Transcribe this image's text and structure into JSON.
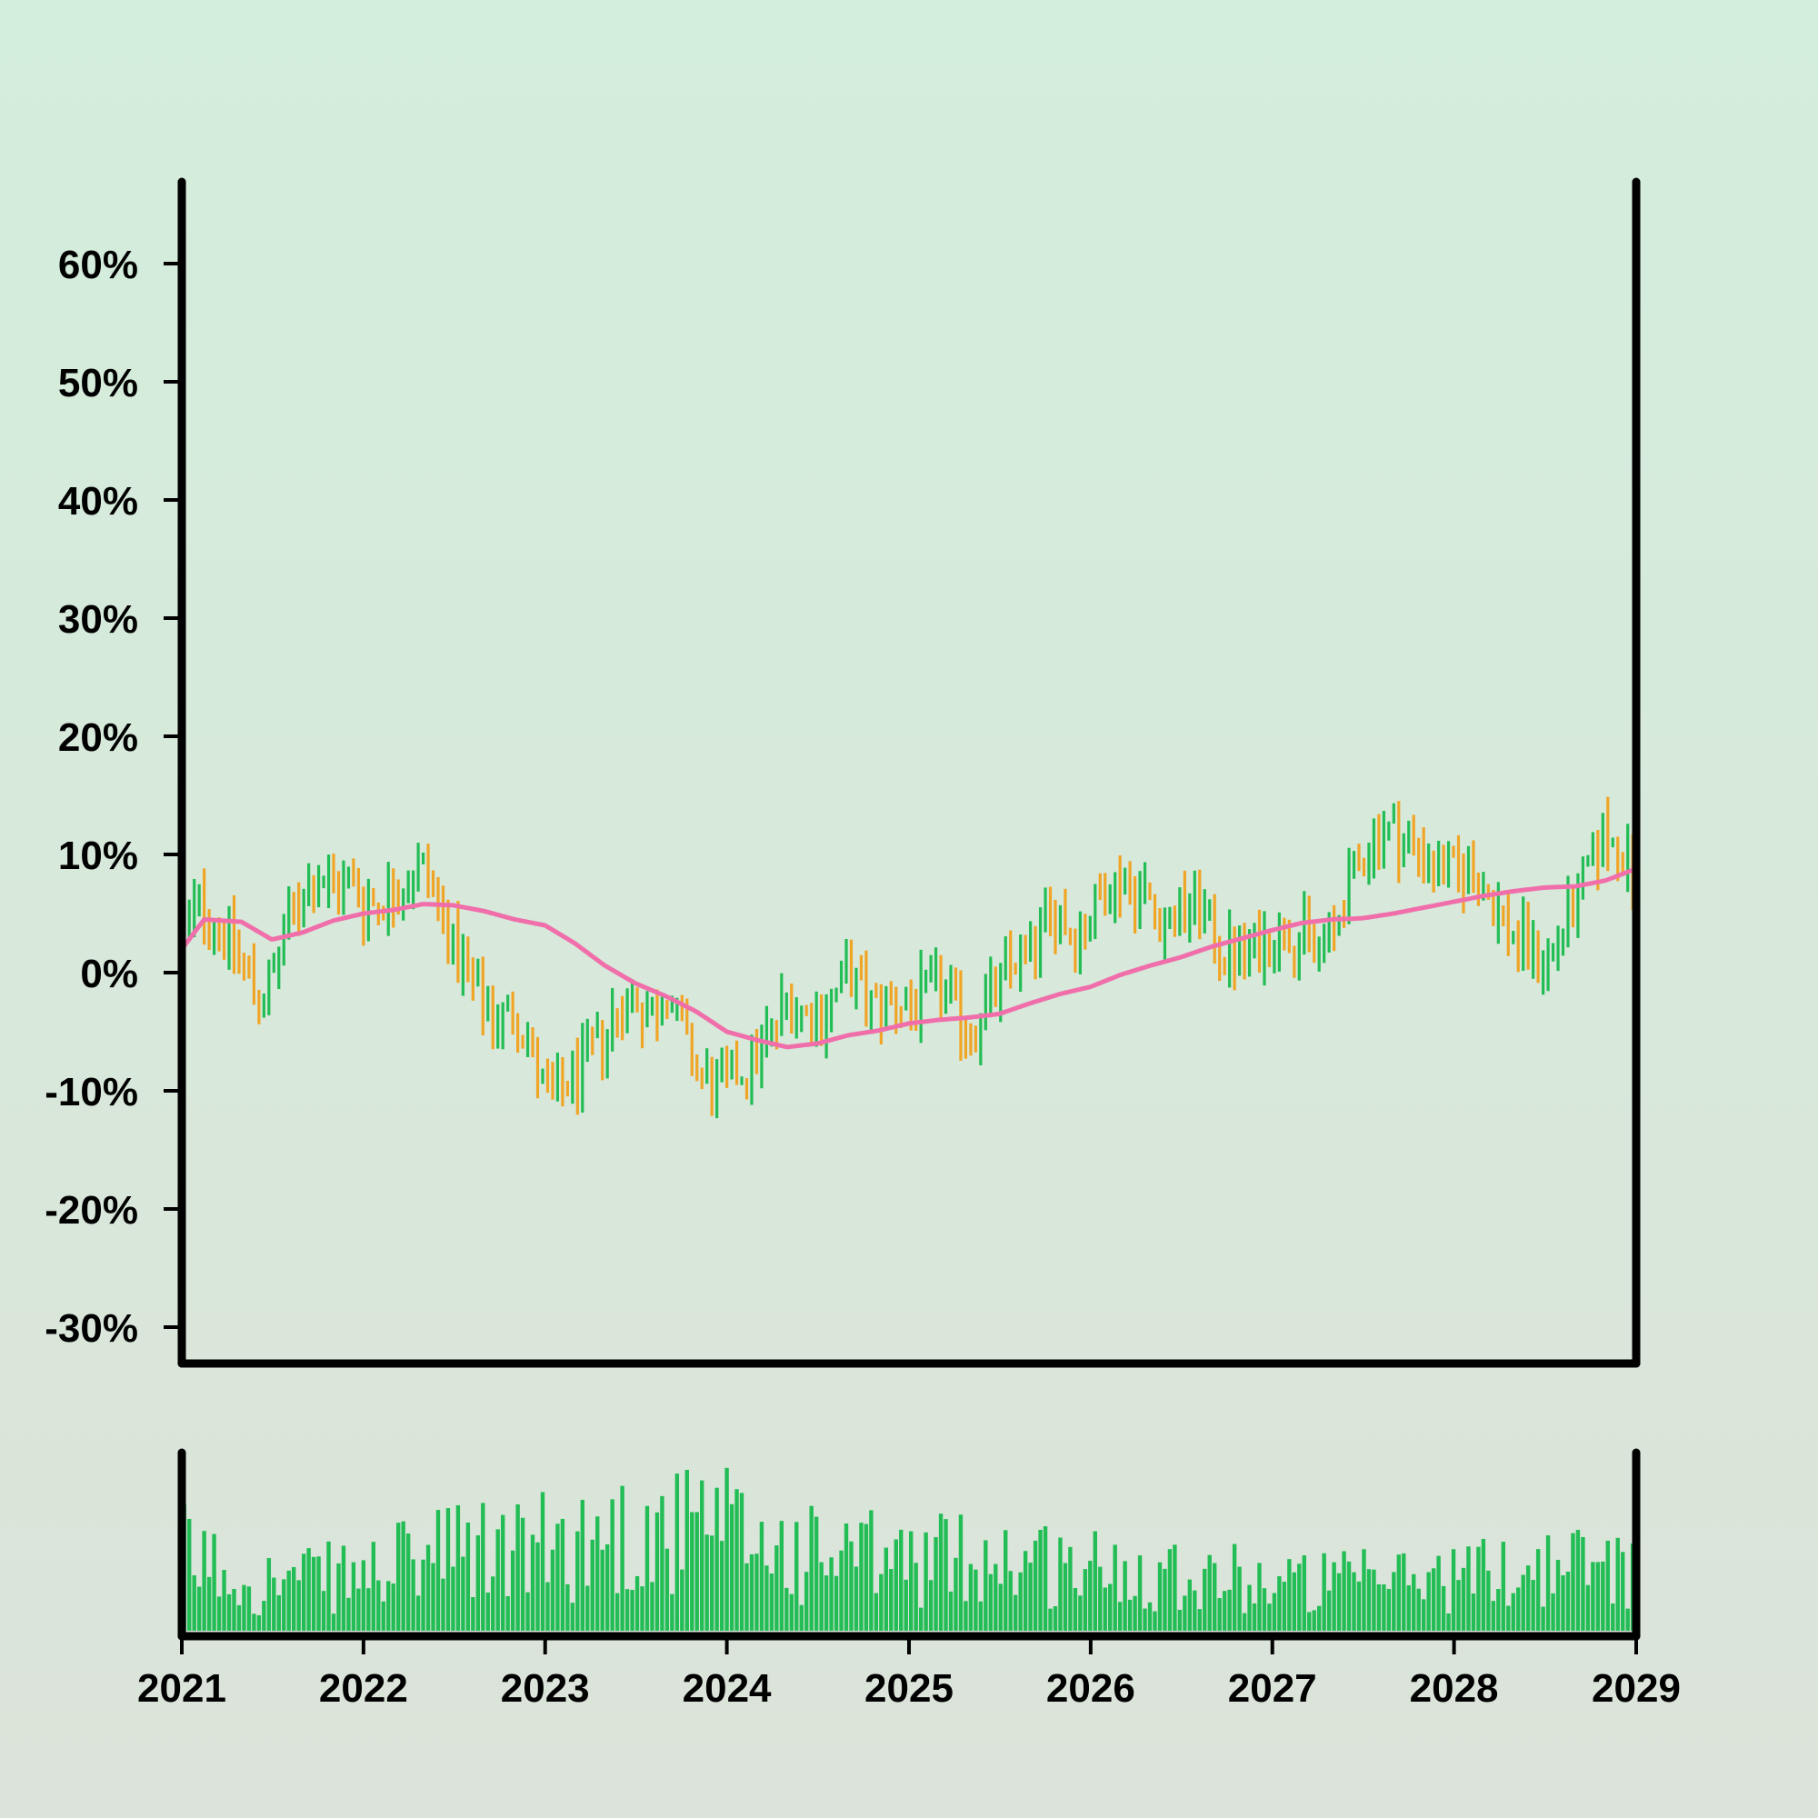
{
  "chart_data": {
    "type": "ohlc",
    "title": "",
    "xlabel": "",
    "ylabel": "",
    "x_range": [
      "2021-01-01",
      "2029-01-01"
    ],
    "y_range": [
      -0.33,
      0.67
    ],
    "y_ticks": [
      -0.3,
      -0.2,
      -0.1,
      0.0,
      0.1,
      0.2,
      0.3,
      0.4,
      0.5,
      0.6
    ],
    "y_tick_labels": [
      "-30%",
      "-20%",
      "-10%",
      "0%",
      "10%",
      "20%",
      "30%",
      "40%",
      "50%",
      "60%"
    ],
    "x_tick_labels": [
      "2021",
      "2022",
      "2023",
      "2024",
      "2025",
      "2026",
      "2027",
      "2028",
      "2029"
    ],
    "grid": false,
    "legend": "none",
    "colors": {
      "background_top": "#d3eedb",
      "background_bottom": "#dce3da",
      "up": "#22bd55",
      "down": "#f0a526",
      "moving_average": "#f06fab",
      "volume": "#22bd55",
      "axis": "#000000"
    },
    "price_path": [
      [
        "2021-01-01",
        0.02
      ],
      [
        "2021-02-01",
        0.06
      ],
      [
        "2021-03-01",
        0.05
      ],
      [
        "2021-04-01",
        0.03
      ],
      [
        "2021-05-01",
        0.01
      ],
      [
        "2021-06-01",
        -0.02
      ],
      [
        "2021-07-01",
        -0.01
      ],
      [
        "2021-08-01",
        0.04
      ],
      [
        "2021-09-01",
        0.07
      ],
      [
        "2021-10-01",
        0.08
      ],
      [
        "2021-11-01",
        0.07
      ],
      [
        "2021-12-01",
        0.08
      ],
      [
        "2022-01-01",
        0.06
      ],
      [
        "2022-02-01",
        0.06
      ],
      [
        "2022-03-01",
        0.07
      ],
      [
        "2022-04-01",
        0.08
      ],
      [
        "2022-05-01",
        0.09
      ],
      [
        "2022-06-01",
        0.06
      ],
      [
        "2022-07-01",
        0.02
      ],
      [
        "2022-08-01",
        -0.01
      ],
      [
        "2022-09-01",
        -0.03
      ],
      [
        "2022-10-01",
        -0.04
      ],
      [
        "2022-11-01",
        -0.03
      ],
      [
        "2022-12-01",
        -0.06
      ],
      [
        "2023-01-01",
        -0.11
      ],
      [
        "2023-02-01",
        -0.1
      ],
      [
        "2023-03-01",
        -0.09
      ],
      [
        "2023-04-01",
        -0.07
      ],
      [
        "2023-05-01",
        -0.05
      ],
      [
        "2023-06-01",
        -0.03
      ],
      [
        "2023-07-01",
        -0.02
      ],
      [
        "2023-08-01",
        -0.04
      ],
      [
        "2023-09-01",
        -0.01
      ],
      [
        "2023-10-01",
        -0.05
      ],
      [
        "2023-11-01",
        -0.08
      ],
      [
        "2023-12-01",
        -0.1
      ],
      [
        "2024-01-01",
        -0.09
      ],
      [
        "2024-02-01",
        -0.08
      ],
      [
        "2024-03-01",
        -0.07
      ],
      [
        "2024-04-01",
        -0.05
      ],
      [
        "2024-05-01",
        -0.02
      ],
      [
        "2024-06-01",
        -0.03
      ],
      [
        "2024-07-01",
        -0.04
      ],
      [
        "2024-08-01",
        -0.02
      ],
      [
        "2024-09-01",
        0.0
      ],
      [
        "2024-10-01",
        -0.02
      ],
      [
        "2024-11-01",
        -0.03
      ],
      [
        "2024-12-01",
        -0.02
      ],
      [
        "2025-01-01",
        -0.03
      ],
      [
        "2025-02-01",
        -0.02
      ],
      [
        "2025-03-01",
        -0.01
      ],
      [
        "2025-04-01",
        -0.03
      ],
      [
        "2025-05-01",
        -0.05
      ],
      [
        "2025-06-01",
        -0.03
      ],
      [
        "2025-07-01",
        -0.01
      ],
      [
        "2025-08-01",
        0.01
      ],
      [
        "2025-09-01",
        0.02
      ],
      [
        "2025-10-01",
        0.04
      ],
      [
        "2025-11-01",
        0.05
      ],
      [
        "2025-12-01",
        0.03
      ],
      [
        "2026-01-01",
        0.05
      ],
      [
        "2026-02-01",
        0.07
      ],
      [
        "2026-03-01",
        0.08
      ],
      [
        "2026-04-01",
        0.07
      ],
      [
        "2026-05-01",
        0.06
      ],
      [
        "2026-06-01",
        0.04
      ],
      [
        "2026-07-01",
        0.05
      ],
      [
        "2026-08-01",
        0.06
      ],
      [
        "2026-09-01",
        0.03
      ],
      [
        "2026-10-01",
        0.02
      ],
      [
        "2026-11-01",
        0.01
      ],
      [
        "2026-12-01",
        0.02
      ],
      [
        "2027-01-01",
        0.03
      ],
      [
        "2027-02-01",
        0.04
      ],
      [
        "2027-03-01",
        0.03
      ],
      [
        "2027-04-01",
        0.02
      ],
      [
        "2027-05-01",
        0.03
      ],
      [
        "2027-06-01",
        0.07
      ],
      [
        "2027-07-01",
        0.1
      ],
      [
        "2027-08-01",
        0.12
      ],
      [
        "2027-09-01",
        0.12
      ],
      [
        "2027-10-01",
        0.11
      ],
      [
        "2027-11-01",
        0.1
      ],
      [
        "2027-12-01",
        0.09
      ],
      [
        "2028-01-01",
        0.08
      ],
      [
        "2028-02-01",
        0.09
      ],
      [
        "2028-03-01",
        0.07
      ],
      [
        "2028-04-01",
        0.05
      ],
      [
        "2028-05-01",
        0.03
      ],
      [
        "2028-06-01",
        0.02
      ],
      [
        "2028-07-01",
        0.01
      ],
      [
        "2028-08-01",
        0.03
      ],
      [
        "2028-09-01",
        0.06
      ],
      [
        "2028-10-01",
        0.09
      ],
      [
        "2028-11-01",
        0.12
      ],
      [
        "2028-12-01",
        0.1
      ],
      [
        "2029-01-01",
        0.08
      ]
    ],
    "moving_average": [
      [
        "2021-01-01",
        0.02
      ],
      [
        "2021-02-15",
        0.045
      ],
      [
        "2021-05-01",
        0.043
      ],
      [
        "2021-07-01",
        0.028
      ],
      [
        "2021-09-01",
        0.034
      ],
      [
        "2021-11-01",
        0.044
      ],
      [
        "2022-01-01",
        0.05
      ],
      [
        "2022-03-01",
        0.053
      ],
      [
        "2022-05-01",
        0.058
      ],
      [
        "2022-07-01",
        0.057
      ],
      [
        "2022-09-01",
        0.052
      ],
      [
        "2022-11-01",
        0.045
      ],
      [
        "2023-01-01",
        0.04
      ],
      [
        "2023-03-01",
        0.025
      ],
      [
        "2023-05-01",
        0.006
      ],
      [
        "2023-07-01",
        -0.009
      ],
      [
        "2023-09-01",
        -0.02
      ],
      [
        "2023-11-01",
        -0.033
      ],
      [
        "2024-01-01",
        -0.05
      ],
      [
        "2024-03-01",
        -0.057
      ],
      [
        "2024-05-01",
        -0.063
      ],
      [
        "2024-07-01",
        -0.06
      ],
      [
        "2024-09-01",
        -0.053
      ],
      [
        "2024-11-01",
        -0.049
      ],
      [
        "2025-01-01",
        -0.043
      ],
      [
        "2025-03-01",
        -0.04
      ],
      [
        "2025-05-01",
        -0.038
      ],
      [
        "2025-07-01",
        -0.035
      ],
      [
        "2025-09-01",
        -0.026
      ],
      [
        "2025-11-01",
        -0.018
      ],
      [
        "2026-01-01",
        -0.012
      ],
      [
        "2026-03-01",
        -0.002
      ],
      [
        "2026-05-01",
        0.006
      ],
      [
        "2026-07-01",
        0.013
      ],
      [
        "2026-09-01",
        0.022
      ],
      [
        "2026-11-01",
        0.029
      ],
      [
        "2027-01-01",
        0.036
      ],
      [
        "2027-03-01",
        0.042
      ],
      [
        "2027-05-01",
        0.045
      ],
      [
        "2027-07-01",
        0.046
      ],
      [
        "2027-09-01",
        0.05
      ],
      [
        "2027-11-01",
        0.055
      ],
      [
        "2028-01-01",
        0.06
      ],
      [
        "2028-03-01",
        0.065
      ],
      [
        "2028-05-01",
        0.069
      ],
      [
        "2028-07-01",
        0.072
      ],
      [
        "2028-09-01",
        0.073
      ],
      [
        "2028-11-01",
        0.078
      ],
      [
        "2029-01-01",
        0.088
      ]
    ],
    "bar_interval_days": 10,
    "bar_amplitude": 0.045,
    "volume_profile": [
      [
        "2021-01-01",
        0.55
      ],
      [
        "2021-06-01",
        0.35
      ],
      [
        "2022-01-01",
        0.4
      ],
      [
        "2022-06-01",
        0.55
      ],
      [
        "2023-01-01",
        0.6
      ],
      [
        "2023-06-01",
        0.7
      ],
      [
        "2024-01-01",
        0.72
      ],
      [
        "2024-06-01",
        0.55
      ],
      [
        "2025-01-01",
        0.5
      ],
      [
        "2025-06-01",
        0.55
      ],
      [
        "2026-01-01",
        0.45
      ],
      [
        "2026-06-01",
        0.45
      ],
      [
        "2027-01-01",
        0.35
      ],
      [
        "2027-06-01",
        0.35
      ],
      [
        "2028-01-01",
        0.4
      ],
      [
        "2028-06-01",
        0.45
      ],
      [
        "2029-01-01",
        0.5
      ]
    ]
  }
}
